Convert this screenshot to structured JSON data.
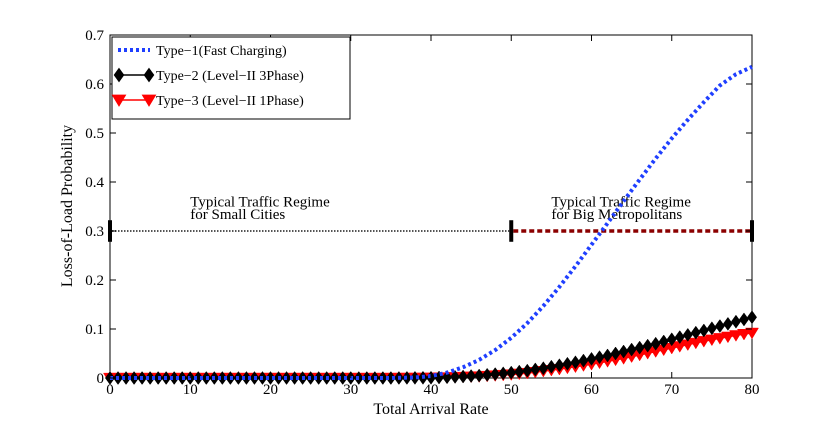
{
  "chart_data": {
    "type": "line",
    "xlabel": "Total Arrival Rate",
    "ylabel": "Loss-of-Load Probability",
    "xlim": [
      0,
      80
    ],
    "ylim": [
      0,
      0.7
    ],
    "xticks": [
      0,
      10,
      20,
      30,
      40,
      50,
      60,
      70,
      80
    ],
    "xtick_labels": [
      "0",
      "10",
      "20",
      "30",
      "40",
      "50",
      "60",
      "70",
      "80"
    ],
    "yticks": [
      0,
      0.1,
      0.2,
      0.3,
      0.4,
      0.5,
      0.6,
      0.7
    ],
    "ytick_labels": [
      "0",
      "0.1",
      "0.2",
      "0.3",
      "0.4",
      "0.5",
      "0.6",
      "0.7"
    ],
    "grid": false,
    "legend_position": "top-left",
    "series": [
      {
        "name": "Type−1(Fast Charging)",
        "color": "#1f3fff",
        "style": "dotted",
        "marker": "none",
        "x": [
          0,
          5,
          10,
          15,
          20,
          25,
          30,
          35,
          38,
          40,
          42,
          44,
          46,
          48,
          50,
          52,
          54,
          56,
          58,
          60,
          62,
          64,
          66,
          68,
          70,
          72,
          74,
          76,
          78,
          80
        ],
        "y": [
          0,
          0,
          0,
          0,
          0,
          0,
          0,
          0,
          0.001,
          0.004,
          0.011,
          0.022,
          0.037,
          0.057,
          0.082,
          0.112,
          0.147,
          0.186,
          0.228,
          0.272,
          0.316,
          0.361,
          0.405,
          0.448,
          0.489,
          0.527,
          0.563,
          0.597,
          0.62,
          0.635
        ]
      },
      {
        "name": "Type−2 (Level−II 3Phase)",
        "color": "#000000",
        "style": "solid",
        "marker": "diamond",
        "x": [
          0,
          5,
          10,
          15,
          20,
          25,
          30,
          35,
          40,
          42,
          44,
          46,
          48,
          50,
          52,
          54,
          56,
          58,
          60,
          62,
          64,
          66,
          68,
          70,
          72,
          74,
          76,
          78,
          80
        ],
        "y": [
          0,
          0,
          0,
          0,
          0,
          0,
          0,
          0,
          0.0005,
          0.0015,
          0.003,
          0.005,
          0.008,
          0.011,
          0.015,
          0.02,
          0.026,
          0.032,
          0.039,
          0.046,
          0.054,
          0.062,
          0.07,
          0.079,
          0.088,
          0.097,
          0.106,
          0.115,
          0.124
        ]
      },
      {
        "name": "Type−3 (Level−II 1Phase)",
        "color": "#ff0000",
        "style": "solid",
        "marker": "triangle-down",
        "x": [
          0,
          5,
          10,
          15,
          20,
          25,
          30,
          35,
          40,
          42,
          44,
          46,
          48,
          50,
          52,
          54,
          56,
          58,
          60,
          62,
          64,
          66,
          68,
          70,
          72,
          74,
          76,
          78,
          80
        ],
        "y": [
          0,
          0,
          0,
          0,
          0,
          0,
          0,
          0,
          0.0003,
          0.001,
          0.002,
          0.003,
          0.005,
          0.007,
          0.01,
          0.014,
          0.018,
          0.023,
          0.028,
          0.034,
          0.04,
          0.047,
          0.054,
          0.061,
          0.068,
          0.075,
          0.081,
          0.087,
          0.092
        ]
      }
    ],
    "annotations": [
      {
        "id": "small",
        "lines": [
          "Typical Traffic Regime",
          "for Small Cities"
        ],
        "x": 10,
        "y_lines": [
          0.36,
          0.335
        ],
        "range": [
          0,
          50
        ],
        "level": 0.3,
        "line_color": "#555555",
        "line_style": "dotted"
      },
      {
        "id": "big",
        "lines": [
          "Typical Traffic Regime",
          "for Big Metropolitans"
        ],
        "x": 55,
        "y_lines": [
          0.36,
          0.335
        ],
        "range": [
          50,
          80
        ],
        "level": 0.3,
        "line_color": "#8b0000",
        "line_style": "dashed"
      }
    ]
  }
}
